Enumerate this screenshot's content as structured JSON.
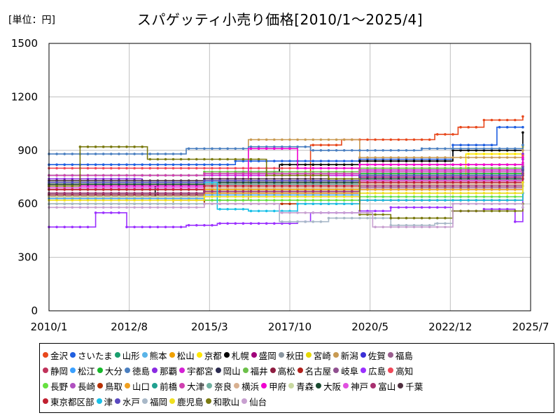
{
  "unit_label": "[単位：円]",
  "chart_data": {
    "type": "line",
    "title": "スパゲッティ小売り価格[2010/1～2025/4]",
    "xlabel": "",
    "ylabel": "",
    "xlim": [
      "2010/1",
      "2025/7"
    ],
    "ylim": [
      0,
      1500
    ],
    "x_ticks": [
      "2010/1",
      "2012/8",
      "2015/3",
      "2017/10",
      "2020/5",
      "2022/12",
      "2025/7"
    ],
    "y_ticks": [
      0,
      300,
      600,
      900,
      1200,
      1500
    ],
    "grid": true,
    "legend_position": "bottom",
    "series": [
      {
        "name": "金沢",
        "color": "#e8481c",
        "points": [
          [
            "2010/1",
            720
          ],
          [
            "2014/1",
            720
          ],
          [
            "2018/6",
            930
          ],
          [
            "2019/6",
            960
          ],
          [
            "2022/6",
            990
          ],
          [
            "2023/3",
            1030
          ],
          [
            "2024/1",
            1070
          ],
          [
            "2025/4",
            1090
          ]
        ]
      },
      {
        "name": "さいたま",
        "color": "#1f5fe0",
        "points": [
          [
            "2010/1",
            820
          ],
          [
            "2012/1",
            820
          ],
          [
            "2016/1",
            840
          ],
          [
            "2020/1",
            850
          ],
          [
            "2023/1",
            930
          ],
          [
            "2024/6",
            1030
          ],
          [
            "2025/4",
            1030
          ]
        ]
      },
      {
        "name": "山形",
        "color": "#1a9e6e",
        "points": [
          [
            "2010/1",
            690
          ],
          [
            "2014/1",
            700
          ],
          [
            "2019/1",
            760
          ],
          [
            "2022/1",
            800
          ],
          [
            "2025/4",
            850
          ]
        ]
      },
      {
        "name": "熊本",
        "color": "#5ab4e8",
        "points": [
          [
            "2010/1",
            760
          ],
          [
            "2015/1",
            760
          ],
          [
            "2020/1",
            780
          ],
          [
            "2025/4",
            930
          ]
        ]
      },
      {
        "name": "松山",
        "color": "#f0a000",
        "points": [
          [
            "2010/1",
            650
          ],
          [
            "2015/1",
            680
          ],
          [
            "2020/1",
            700
          ],
          [
            "2025/4",
            780
          ]
        ]
      },
      {
        "name": "京都",
        "color": "#ffe600",
        "points": [
          [
            "2010/1",
            720
          ],
          [
            "2015/1",
            720
          ],
          [
            "2020/1",
            760
          ],
          [
            "2023/6",
            880
          ],
          [
            "2025/4",
            920
          ]
        ]
      },
      {
        "name": "札幌",
        "color": "#000000",
        "points": [
          [
            "2010/1",
            640
          ],
          [
            "2013/6",
            700
          ],
          [
            "2016/1",
            780
          ],
          [
            "2017/6",
            820
          ],
          [
            "2020/1",
            840
          ],
          [
            "2023/1",
            900
          ],
          [
            "2025/4",
            1000
          ]
        ]
      },
      {
        "name": "盛岡",
        "color": "#a0007a",
        "points": [
          [
            "2010/1",
            700
          ],
          [
            "2015/1",
            710
          ],
          [
            "2020/1",
            750
          ],
          [
            "2025/4",
            880
          ]
        ]
      },
      {
        "name": "秋田",
        "color": "#8a96a0",
        "points": [
          [
            "2010/1",
            700
          ],
          [
            "2015/1",
            720
          ],
          [
            "2020/1",
            720
          ],
          [
            "2025/4",
            720
          ]
        ]
      },
      {
        "name": "宮崎",
        "color": "#e6d800",
        "points": [
          [
            "2010/1",
            710
          ],
          [
            "2015/1",
            710
          ],
          [
            "2020/1",
            730
          ],
          [
            "2025/4",
            760
          ]
        ]
      },
      {
        "name": "新潟",
        "color": "#c89a52",
        "points": [
          [
            "2010/1",
            600
          ],
          [
            "2014/1",
            620
          ],
          [
            "2016/6",
            960
          ],
          [
            "2019/6",
            960
          ],
          [
            "2020/1",
            860
          ],
          [
            "2025/4",
            900
          ]
        ]
      },
      {
        "name": "佐賀",
        "color": "#3b2fd6",
        "points": [
          [
            "2010/1",
            700
          ],
          [
            "2015/1",
            710
          ],
          [
            "2020/1",
            740
          ],
          [
            "2025/4",
            790
          ]
        ]
      },
      {
        "name": "福島",
        "color": "#9a5e8e",
        "points": [
          [
            "2010/1",
            650
          ],
          [
            "2015/1",
            660
          ],
          [
            "2020/1",
            690
          ],
          [
            "2025/4",
            740
          ]
        ]
      },
      {
        "name": "静岡",
        "color": "#c0325a",
        "points": [
          [
            "2010/1",
            690
          ],
          [
            "2015/1",
            700
          ],
          [
            "2020/1",
            720
          ],
          [
            "2025/4",
            790
          ]
        ]
      },
      {
        "name": "松江",
        "color": "#3aa0ff",
        "points": [
          [
            "2010/1",
            630
          ],
          [
            "2015/1",
            650
          ],
          [
            "2020/1",
            680
          ],
          [
            "2025/4",
            720
          ]
        ]
      },
      {
        "name": "大分",
        "color": "#16b82a",
        "points": [
          [
            "2010/1",
            680
          ],
          [
            "2015/1",
            690
          ],
          [
            "2020/1",
            770
          ],
          [
            "2025/4",
            800
          ]
        ]
      },
      {
        "name": "徳島",
        "color": "#4a7fc0",
        "points": [
          [
            "2010/1",
            880
          ],
          [
            "2014/1",
            880
          ],
          [
            "2014/6",
            910
          ],
          [
            "2016/1",
            910
          ],
          [
            "2016/6",
            920
          ],
          [
            "2018/6",
            900
          ],
          [
            "2022/1",
            910
          ],
          [
            "2025/4",
            930
          ]
        ]
      },
      {
        "name": "那覇",
        "color": "#8a2be2",
        "points": [
          [
            "2010/1",
            740
          ],
          [
            "2013/1",
            720
          ],
          [
            "2016/1",
            760
          ],
          [
            "2020/1",
            800
          ],
          [
            "2025/4",
            880
          ]
        ]
      },
      {
        "name": "宇都宮",
        "color": "#d51fd5",
        "points": [
          [
            "2010/1",
            760
          ],
          [
            "2015/1",
            760
          ],
          [
            "2020/1",
            790
          ],
          [
            "2025/4",
            830
          ]
        ]
      },
      {
        "name": "岡山",
        "color": "#2b2b50",
        "points": [
          [
            "2010/1",
            700
          ],
          [
            "2015/1",
            720
          ],
          [
            "2020/1",
            760
          ],
          [
            "2025/4",
            810
          ]
        ]
      },
      {
        "name": "福井",
        "color": "#6cc04a",
        "points": [
          [
            "2010/1",
            760
          ],
          [
            "2015/1",
            780
          ],
          [
            "2020/1",
            800
          ],
          [
            "2025/4",
            850
          ]
        ]
      },
      {
        "name": "高松",
        "color": "#8e1c40",
        "points": [
          [
            "2010/1",
            650
          ],
          [
            "2015/1",
            670
          ],
          [
            "2020/1",
            700
          ],
          [
            "2025/4",
            760
          ]
        ]
      },
      {
        "name": "名古屋",
        "color": "#b0201c",
        "points": [
          [
            "2010/1",
            680
          ],
          [
            "2015/1",
            690
          ],
          [
            "2020/1",
            710
          ],
          [
            "2025/4",
            760
          ]
        ]
      },
      {
        "name": "岐阜",
        "color": "#905090",
        "points": [
          [
            "2010/1",
            700
          ],
          [
            "2015/1",
            710
          ],
          [
            "2020/1",
            740
          ],
          [
            "2025/4",
            780
          ]
        ]
      },
      {
        "name": "広島",
        "color": "#9b30ff",
        "points": [
          [
            "2010/1",
            470
          ],
          [
            "2011/6",
            470
          ],
          [
            "2011/7",
            550
          ],
          [
            "2012/6",
            550
          ],
          [
            "2012/7",
            470
          ],
          [
            "2014/6",
            480
          ],
          [
            "2015/6",
            490
          ],
          [
            "2018/1",
            500
          ],
          [
            "2018/6",
            550
          ],
          [
            "2020/1",
            560
          ],
          [
            "2021/1",
            580
          ],
          [
            "2023/1",
            560
          ],
          [
            "2024/1",
            570
          ],
          [
            "2025/1",
            500
          ],
          [
            "2025/4",
            850
          ]
        ]
      },
      {
        "name": "高知",
        "color": "#f04858",
        "points": [
          [
            "2010/1",
            800
          ],
          [
            "2015/1",
            800
          ],
          [
            "2020/1",
            820
          ],
          [
            "2025/4",
            870
          ]
        ]
      },
      {
        "name": "長野",
        "color": "#66e040",
        "points": [
          [
            "2010/1",
            600
          ],
          [
            "2015/1",
            620
          ],
          [
            "2020/1",
            640
          ],
          [
            "2025/4",
            700
          ]
        ]
      },
      {
        "name": "長崎",
        "color": "#b050c0",
        "points": [
          [
            "2010/1",
            680
          ],
          [
            "2015/1",
            700
          ],
          [
            "2020/1",
            720
          ],
          [
            "2025/4",
            770
          ]
        ]
      },
      {
        "name": "鳥取",
        "color": "#b83000",
        "points": [
          [
            "2010/1",
            640
          ],
          [
            "2015/1",
            600
          ],
          [
            "2020/1",
            620
          ],
          [
            "2025/4",
            660
          ]
        ]
      },
      {
        "name": "山口",
        "color": "#f0a020",
        "points": [
          [
            "2010/1",
            640
          ],
          [
            "2015/1",
            660
          ],
          [
            "2020/1",
            680
          ],
          [
            "2025/4",
            740
          ]
        ]
      },
      {
        "name": "前橋",
        "color": "#20a090",
        "points": [
          [
            "2010/1",
            660
          ],
          [
            "2015/1",
            670
          ],
          [
            "2020/1",
            700
          ],
          [
            "2025/4",
            740
          ]
        ]
      },
      {
        "name": "大津",
        "color": "#d040b0",
        "points": [
          [
            "2010/1",
            760
          ],
          [
            "2015/1",
            770
          ],
          [
            "2020/1",
            780
          ],
          [
            "2025/4",
            820
          ]
        ]
      },
      {
        "name": "奈良",
        "color": "#70b0a0",
        "points": [
          [
            "2010/1",
            700
          ],
          [
            "2015/1",
            710
          ],
          [
            "2020/1",
            730
          ],
          [
            "2025/4",
            770
          ]
        ]
      },
      {
        "name": "横浜",
        "color": "#d8b090",
        "points": [
          [
            "2010/1",
            680
          ],
          [
            "2015/1",
            690
          ],
          [
            "2020/1",
            710
          ],
          [
            "2025/4",
            750
          ]
        ]
      },
      {
        "name": "甲府",
        "color": "#f000d0",
        "points": [
          [
            "2010/1",
            700
          ],
          [
            "2015/1",
            740
          ],
          [
            "2016/6",
            910
          ],
          [
            "2017/6",
            910
          ],
          [
            "2018/1",
            800
          ],
          [
            "2020/1",
            820
          ],
          [
            "2025/4",
            860
          ]
        ]
      },
      {
        "name": "青森",
        "color": "#c8d8a0",
        "points": [
          [
            "2010/1",
            640
          ],
          [
            "2015/1",
            640
          ],
          [
            "2020/1",
            660
          ],
          [
            "2025/4",
            700
          ]
        ]
      },
      {
        "name": "大阪",
        "color": "#1a4a30",
        "points": [
          [
            "2010/1",
            710
          ],
          [
            "2015/1",
            720
          ],
          [
            "2020/1",
            740
          ],
          [
            "2025/4",
            790
          ]
        ]
      },
      {
        "name": "神戸",
        "color": "#e050e0",
        "points": [
          [
            "2010/1",
            690
          ],
          [
            "2015/1",
            700
          ],
          [
            "2020/1",
            730
          ],
          [
            "2025/4",
            770
          ]
        ]
      },
      {
        "name": "富山",
        "color": "#a83070",
        "points": [
          [
            "2010/1",
            660
          ],
          [
            "2015/1",
            670
          ],
          [
            "2020/1",
            700
          ],
          [
            "2025/4",
            740
          ]
        ]
      },
      {
        "name": "千葉",
        "color": "#503040",
        "points": [
          [
            "2010/1",
            730
          ],
          [
            "2015/1",
            740
          ],
          [
            "2020/1",
            760
          ],
          [
            "2025/4",
            800
          ]
        ]
      },
      {
        "name": "東京都区部",
        "color": "#c02030",
        "points": [
          [
            "2010/1",
            680
          ],
          [
            "2015/1",
            700
          ],
          [
            "2020/1",
            720
          ],
          [
            "2025/4",
            770
          ]
        ]
      },
      {
        "name": "津",
        "color": "#18c0e8",
        "points": [
          [
            "2010/1",
            720
          ],
          [
            "2015/6",
            570
          ],
          [
            "2016/6",
            560
          ],
          [
            "2018/1",
            600
          ],
          [
            "2020/1",
            620
          ],
          [
            "2025/4",
            660
          ]
        ]
      },
      {
        "name": "水戸",
        "color": "#5a4ac0",
        "points": [
          [
            "2010/1",
            720
          ],
          [
            "2015/1",
            730
          ],
          [
            "2020/1",
            760
          ],
          [
            "2025/4",
            800
          ]
        ]
      },
      {
        "name": "福岡",
        "color": "#a8b8c8",
        "points": [
          [
            "2010/1",
            600
          ],
          [
            "2017/6",
            500
          ],
          [
            "2019/1",
            520
          ],
          [
            "2021/1",
            480
          ],
          [
            "2022/6",
            490
          ],
          [
            "2023/1",
            600
          ],
          [
            "2025/4",
            580
          ]
        ]
      },
      {
        "name": "鹿児島",
        "color": "#f0e020",
        "points": [
          [
            "2010/1",
            620
          ],
          [
            "2015/1",
            640
          ],
          [
            "2020/1",
            660
          ],
          [
            "2025/4",
            720
          ]
        ]
      },
      {
        "name": "和歌山",
        "color": "#7a7a10",
        "points": [
          [
            "2010/1",
            700
          ],
          [
            "2011/1",
            920
          ],
          [
            "2013/1",
            920
          ],
          [
            "2013/3",
            850
          ],
          [
            "2017/1",
            760
          ],
          [
            "2019/1",
            740
          ],
          [
            "2020/1",
            540
          ],
          [
            "2021/1",
            520
          ],
          [
            "2023/1",
            560
          ],
          [
            "2025/4",
            600
          ]
        ]
      },
      {
        "name": "仙台",
        "color": "#c8a0d0",
        "points": [
          [
            "2010/1",
            580
          ],
          [
            "2015/1",
            600
          ],
          [
            "2017/6",
            550
          ],
          [
            "2020/6",
            470
          ],
          [
            "2022/6",
            470
          ],
          [
            "2023/1",
            600
          ],
          [
            "2025/4",
            580
          ]
        ]
      }
    ]
  }
}
